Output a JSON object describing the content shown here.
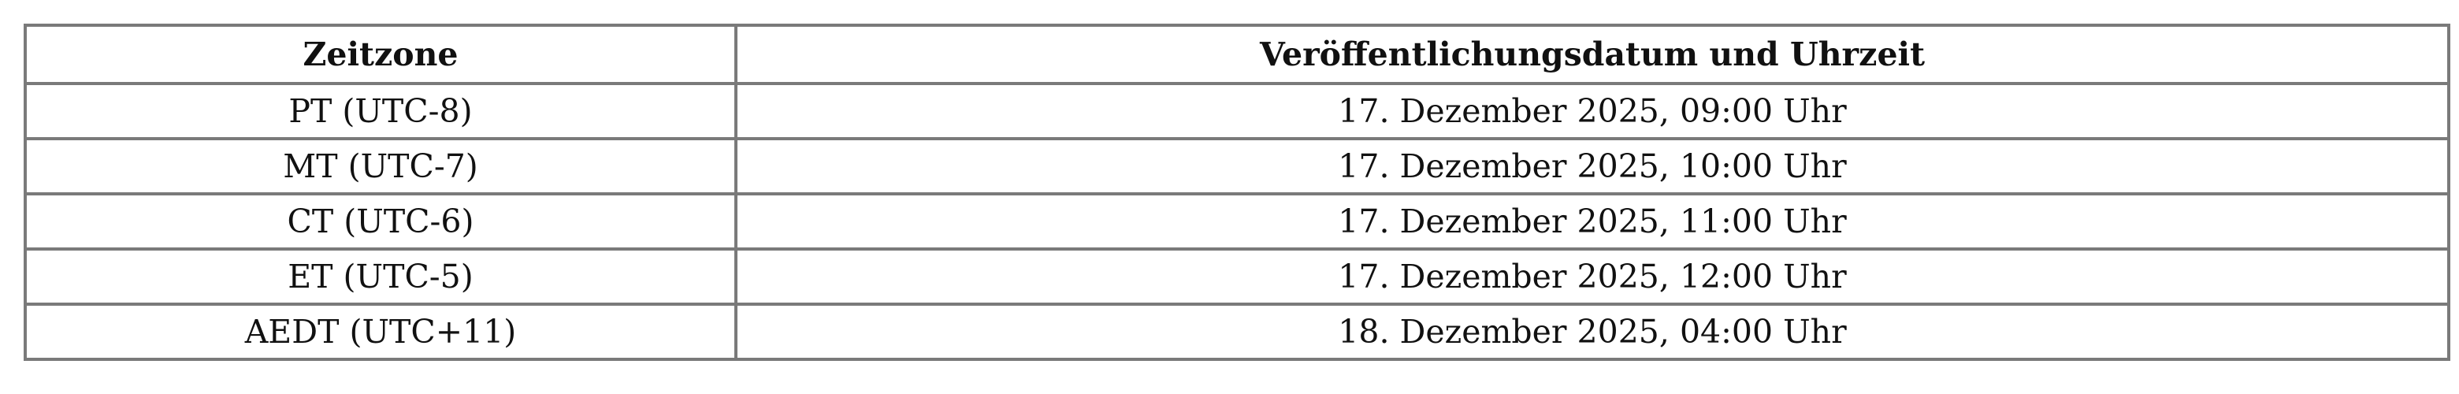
{
  "table": {
    "headers": [
      "Zeitzone",
      "Veröffentlichungsdatum und Uhrzeit"
    ],
    "rows": [
      [
        "PT (UTC-8)",
        "17. Dezember 2025, 09:00 Uhr"
      ],
      [
        "MT (UTC-7)",
        "17. Dezember 2025, 10:00 Uhr"
      ],
      [
        "CT (UTC-6)",
        "17. Dezember 2025, 11:00 Uhr"
      ],
      [
        "ET (UTC-5)",
        "17. Dezember 2025, 12:00 Uhr"
      ],
      [
        "AEDT (UTC+11)",
        "18. Dezember 2025, 04:00 Uhr"
      ]
    ]
  }
}
